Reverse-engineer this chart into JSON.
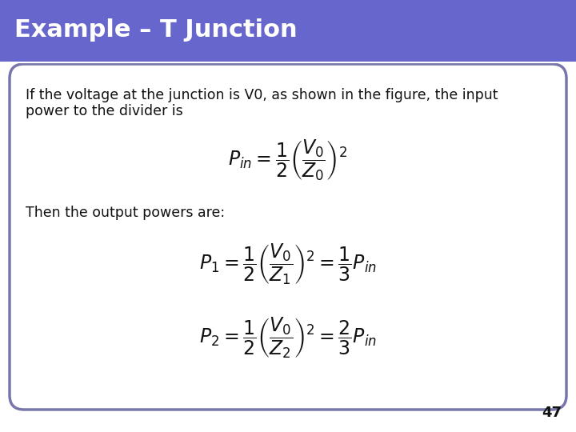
{
  "title": "Example – T Junction",
  "title_bg_color": "#6666cc",
  "title_text_color": "#ffffff",
  "slide_bg_color": "#ffffff",
  "border_color": "#7777aa",
  "body_text1_line1": "If the voltage at the junction is V0, as shown in the figure, the input",
  "body_text1_line2": "power to the divider is",
  "label_then": "Then the output powers are:",
  "eq1": "$P_{in} = \\dfrac{1}{2}\\left(\\dfrac{V_0}{Z_0}\\right)^2$",
  "eq2": "$P_1 = \\dfrac{1}{2}\\left(\\dfrac{V_0}{Z_1}\\right)^2 = \\dfrac{1}{3}P_{in}$",
  "eq3": "$P_2 = \\dfrac{1}{2}\\left(\\dfrac{V_0}{Z_2}\\right)^2 = \\dfrac{2}{3}P_{in}$",
  "page_number": "47",
  "text_color": "#111111"
}
